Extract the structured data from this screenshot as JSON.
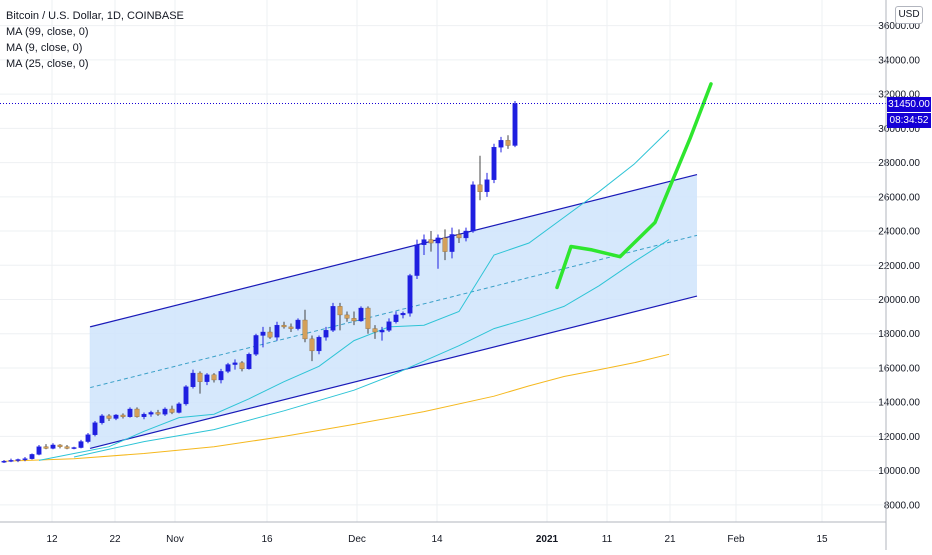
{
  "legend": {
    "title": "Bitcoin / U.S. Dollar, 1D, COINBASE",
    "ma1": "MA (99, close, 0)",
    "ma2": "MA (9, close, 0)",
    "ma3": "MA (25, close, 0)"
  },
  "currency_button": "USD",
  "last_price_label": "31450.00",
  "countdown_label": "08:34:52",
  "colors": {
    "up_candle": "#1f1fe0",
    "down_candle": "#d4a05a",
    "channel_fill": "#cfe4fb",
    "channel_line": "#1a1ab8",
    "midline": "#3aa0c8",
    "ma_fast": "#2ec4d6",
    "ma_slow": "#f5b81e",
    "green_arrow": "#2ee62e",
    "grid": "#eef0f3",
    "last_price_line": "#1500d6"
  },
  "chart_data": {
    "type": "candlestick",
    "title": "Bitcoin / U.S. Dollar, 1D, COINBASE",
    "y_axis_ticks": [
      "36000.00",
      "34000.00",
      "32000.00",
      "30000.00",
      "28000.00",
      "26000.00",
      "24000.00",
      "22000.00",
      "20000.00",
      "18000.00",
      "16000.00",
      "14000.00",
      "12000.00",
      "10000.00",
      "8000.00"
    ],
    "x_axis_ticks": [
      "12",
      "22",
      "Nov",
      "16",
      "Dec",
      "14",
      "2021",
      "11",
      "21",
      "Feb",
      "15"
    ],
    "ylim": [
      7000,
      37500
    ],
    "grid": true,
    "ohlc": [
      [
        10500,
        10620,
        10450,
        10550
      ],
      [
        10550,
        10700,
        10500,
        10600
      ],
      [
        10600,
        10700,
        10500,
        10650
      ],
      [
        10650,
        10800,
        10550,
        10700
      ],
      [
        10700,
        11000,
        10650,
        10950
      ],
      [
        10950,
        11500,
        10900,
        11400
      ],
      [
        11400,
        11550,
        11250,
        11300
      ],
      [
        11300,
        11600,
        11250,
        11500
      ],
      [
        11500,
        11550,
        11300,
        11400
      ],
      [
        11400,
        11500,
        11250,
        11300
      ],
      [
        11300,
        11400,
        11250,
        11350
      ],
      [
        11350,
        11800,
        11300,
        11700
      ],
      [
        11700,
        12200,
        11600,
        12100
      ],
      [
        12100,
        12900,
        12000,
        12800
      ],
      [
        12800,
        13300,
        12700,
        13200
      ],
      [
        13200,
        13300,
        12900,
        13050
      ],
      [
        13050,
        13300,
        12950,
        13250
      ],
      [
        13250,
        13350,
        13050,
        13150
      ],
      [
        13150,
        13700,
        13100,
        13600
      ],
      [
        13600,
        13700,
        13100,
        13150
      ],
      [
        13150,
        13400,
        13000,
        13300
      ],
      [
        13300,
        13500,
        13150,
        13400
      ],
      [
        13400,
        13550,
        13200,
        13300
      ],
      [
        13300,
        13700,
        13200,
        13600
      ],
      [
        13600,
        13800,
        13300,
        13400
      ],
      [
        13400,
        14000,
        13350,
        13900
      ],
      [
        13900,
        15000,
        13800,
        14900
      ],
      [
        14900,
        15900,
        14800,
        15700
      ],
      [
        15700,
        15800,
        14500,
        15200
      ],
      [
        15200,
        15700,
        15000,
        15600
      ],
      [
        15600,
        15700,
        15150,
        15300
      ],
      [
        15300,
        15950,
        15100,
        15800
      ],
      [
        15800,
        16300,
        15700,
        16200
      ],
      [
        16200,
        16500,
        15900,
        16300
      ],
      [
        16300,
        16400,
        15800,
        15950
      ],
      [
        15950,
        16900,
        15900,
        16800
      ],
      [
        16800,
        18000,
        16700,
        17900
      ],
      [
        17900,
        18400,
        17200,
        18100
      ],
      [
        18100,
        18400,
        17700,
        17800
      ],
      [
        17800,
        18700,
        17600,
        18500
      ],
      [
        18500,
        18700,
        18300,
        18400
      ],
      [
        18400,
        18600,
        18100,
        18300
      ],
      [
        18300,
        18900,
        18200,
        18800
      ],
      [
        18800,
        19400,
        17500,
        17700
      ],
      [
        17700,
        17900,
        16400,
        17000
      ],
      [
        17000,
        17900,
        16800,
        17800
      ],
      [
        17800,
        18400,
        17600,
        18200
      ],
      [
        18200,
        19800,
        18100,
        19600
      ],
      [
        19600,
        19800,
        18200,
        19100
      ],
      [
        19100,
        19300,
        18700,
        18900
      ],
      [
        18900,
        19300,
        18500,
        18750
      ],
      [
        18750,
        19600,
        18700,
        19500
      ],
      [
        19500,
        19600,
        18000,
        18300
      ],
      [
        18300,
        18500,
        17700,
        18100
      ],
      [
        18100,
        18400,
        17600,
        18200
      ],
      [
        18200,
        18900,
        18100,
        18700
      ],
      [
        18700,
        19300,
        18600,
        19100
      ],
      [
        19100,
        19300,
        18900,
        19200
      ],
      [
        19200,
        21500,
        19000,
        21400
      ],
      [
        21400,
        23500,
        21200,
        23200
      ],
      [
        23200,
        23800,
        22600,
        23500
      ],
      [
        23500,
        24000,
        22800,
        23300
      ],
      [
        23300,
        23800,
        21800,
        23600
      ],
      [
        23600,
        24100,
        22300,
        22800
      ],
      [
        22800,
        24200,
        22400,
        23800
      ],
      [
        23800,
        24100,
        23300,
        23600
      ],
      [
        23600,
        24200,
        23400,
        24000
      ],
      [
        24000,
        26900,
        23900,
        26700
      ],
      [
        26700,
        28400,
        25800,
        26300
      ],
      [
        26300,
        27400,
        26000,
        27000
      ],
      [
        27000,
        29100,
        26800,
        28900
      ],
      [
        28900,
        29500,
        28600,
        29300
      ],
      [
        29300,
        29600,
        28800,
        29000
      ],
      [
        29000,
        31600,
        28900,
        31450
      ]
    ],
    "channel": {
      "upper": {
        "x": [
          15,
          99
        ],
        "y": [
          18400,
          27300
        ]
      },
      "lower": {
        "x": [
          15,
          99
        ],
        "y": [
          11300,
          20200
        ]
      },
      "mid": {
        "x": [
          15,
          99
        ],
        "y": [
          14850,
          23750
        ]
      }
    },
    "series": [
      {
        "name": "MA (99, close, 0)",
        "x": [
          0,
          10,
          20,
          30,
          40,
          50,
          60,
          70,
          75,
          80,
          85,
          90,
          95
        ],
        "values": [
          10550,
          10700,
          11000,
          11400,
          12000,
          12700,
          13450,
          14350,
          14950,
          15500,
          15900,
          16300,
          16800
        ]
      },
      {
        "name": "MA (25, close, 0)",
        "x": [
          10,
          15,
          20,
          30,
          40,
          50,
          55,
          60,
          65,
          70,
          75,
          80,
          85,
          90,
          95
        ],
        "values": [
          10800,
          11250,
          11700,
          12400,
          13500,
          14700,
          15500,
          16400,
          17300,
          18300,
          18900,
          19600,
          20800,
          22200,
          23500
        ]
      },
      {
        "name": "MA (9, close, 0)",
        "x": [
          5,
          10,
          15,
          20,
          25,
          30,
          35,
          40,
          45,
          50,
          55,
          60,
          65,
          70,
          75,
          80,
          85,
          90,
          95
        ],
        "values": [
          10600,
          11000,
          11400,
          12300,
          13100,
          13300,
          14200,
          15200,
          16100,
          17600,
          18400,
          18500,
          19300,
          22600,
          23300,
          24800,
          26300,
          27900,
          29900
        ]
      },
      {
        "name": "projection",
        "x": [
          79,
          81,
          84,
          88,
          93,
          98,
          101
        ],
        "values": [
          20700,
          23100,
          22900,
          22500,
          24500,
          29400,
          32600
        ]
      }
    ]
  }
}
